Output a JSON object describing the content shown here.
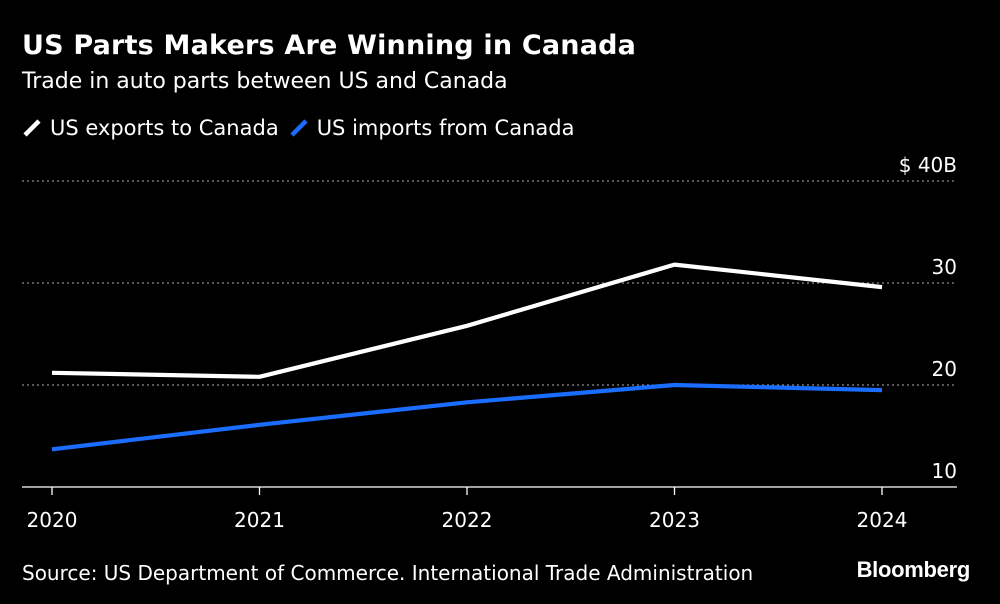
{
  "header": {
    "title": "US Parts Makers Are Winning in Canada",
    "subtitle": "Trade in auto parts between US and Canada"
  },
  "footer": {
    "source": "Source: US Department of Commerce. International Trade Administration",
    "logo": "Bloomberg"
  },
  "chart_data": {
    "type": "line",
    "title": "US Parts Makers Are Winning in Canada",
    "subtitle": "Trade in auto parts between US and Canada",
    "x": [
      "2020",
      "2021",
      "2022",
      "2023",
      "2024"
    ],
    "series": [
      {
        "name": "US exports to Canada",
        "color": "#ffffff",
        "values": [
          21.2,
          20.8,
          25.8,
          31.8,
          29.6
        ]
      },
      {
        "name": "US imports from Canada",
        "color": "#1a6dff",
        "values": [
          13.7,
          16.1,
          18.3,
          20.0,
          19.5
        ]
      }
    ],
    "y_ticks": [
      {
        "value": 10,
        "label": "10"
      },
      {
        "value": 20,
        "label": "20"
      },
      {
        "value": 30,
        "label": "30"
      },
      {
        "value": 40,
        "label": "$ 40B"
      }
    ],
    "ylim": [
      10,
      40
    ],
    "xlabel": "",
    "ylabel": "",
    "grid": "horizontal dotted",
    "legend": "top-left",
    "background": "#000000",
    "grid_color": "#8c8c8c"
  }
}
